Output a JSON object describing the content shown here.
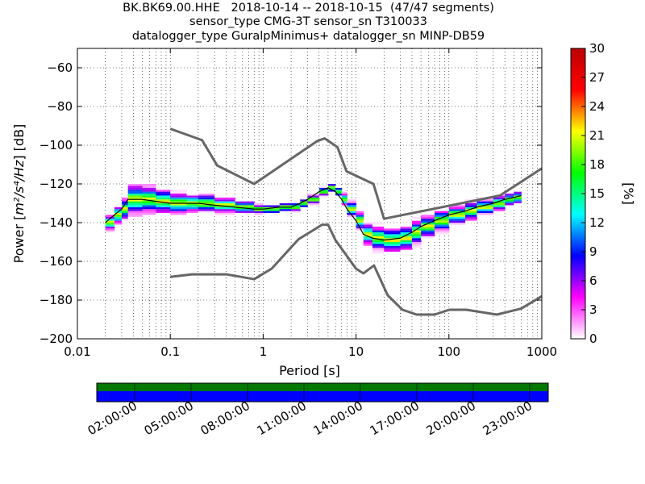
{
  "title_lines": [
    "BK.BK69.00.HHE   2018-10-14 -- 2018-10-15  (47/47 segments)",
    "sensor_type CMG-3T sensor_sn T310033",
    "datalogger_type GuralpMinimus+ datalogger_sn MINP-DB59"
  ],
  "chart_data": {
    "type": "heatmap",
    "xlabel": "Period [s]",
    "ylabel": "Power [m²/s⁴/Hz] [dB]",
    "ylabel_parts": {
      "prefix": "Power [",
      "unit": "m²/s⁴/Hz",
      "suffix": "] [dB]"
    },
    "x_scale": "log",
    "xlim": [
      0.01,
      1000
    ],
    "ylim": [
      -200,
      -50
    ],
    "x_ticks": [
      0.01,
      0.1,
      1,
      10,
      100,
      1000
    ],
    "x_tick_labels": [
      "0.01",
      "0.1",
      "1",
      "10",
      "100",
      "1000"
    ],
    "y_ticks": [
      -60,
      -80,
      -100,
      -120,
      -140,
      -160,
      -180,
      -200
    ],
    "grid": "dotted",
    "colorbar": {
      "label": "[%]",
      "range": [
        0,
        30
      ],
      "ticks": [
        0,
        3,
        6,
        9,
        12,
        15,
        18,
        21,
        24,
        27,
        30
      ],
      "colors": [
        "#ffffff",
        "#ff00ff",
        "#0000ff",
        "#00ffff",
        "#00ff00",
        "#ffff00",
        "#ff0000",
        "#bb0000"
      ]
    },
    "nhnm": {
      "name": "NHNM",
      "color": "#666666",
      "points": [
        [
          0.1,
          -91.5
        ],
        [
          0.22,
          -97.4
        ],
        [
          0.32,
          -110.5
        ],
        [
          0.8,
          -120
        ],
        [
          3.8,
          -97.9
        ],
        [
          4.6,
          -96.5
        ],
        [
          6.3,
          -101
        ],
        [
          7.9,
          -113.5
        ],
        [
          15.4,
          -120
        ],
        [
          20,
          -138
        ],
        [
          354.8,
          -126
        ],
        [
          1000,
          -112
        ]
      ]
    },
    "nlnm": {
      "name": "NLNM",
      "color": "#666666",
      "points": [
        [
          0.1,
          -168
        ],
        [
          0.17,
          -166.7
        ],
        [
          0.4,
          -166.7
        ],
        [
          0.8,
          -169.2
        ],
        [
          1.24,
          -163.7
        ],
        [
          2.4,
          -148.6
        ],
        [
          4.3,
          -141.1
        ],
        [
          5,
          -141.1
        ],
        [
          6,
          -149
        ],
        [
          10,
          -163.8
        ],
        [
          12,
          -166.2
        ],
        [
          15.6,
          -162.1
        ],
        [
          21.9,
          -177.5
        ],
        [
          31.6,
          -185
        ],
        [
          45,
          -187.5
        ],
        [
          70,
          -187.5
        ],
        [
          101,
          -185
        ],
        [
          154,
          -185
        ],
        [
          328,
          -187.5
        ],
        [
          600,
          -184.4
        ],
        [
          1000,
          -178
        ]
      ]
    },
    "psd_bands": {
      "periods": [
        0.02,
        0.025,
        0.03,
        0.035,
        0.05,
        0.07,
        0.1,
        0.15,
        0.2,
        0.3,
        0.5,
        0.8,
        1,
        1.5,
        2,
        2.5,
        3,
        4,
        5,
        6,
        7,
        8,
        10,
        12,
        15,
        20,
        30,
        40,
        50,
        70,
        100,
        150,
        200,
        300,
        400,
        500,
        600
      ],
      "center_db": [
        -140,
        -136,
        -133,
        -128,
        -128,
        -129,
        -130,
        -130,
        -130,
        -131,
        -132,
        -133,
        -133,
        -132,
        -132,
        -130,
        -128,
        -124,
        -122,
        -124,
        -128,
        -133,
        -139,
        -146,
        -148,
        -149,
        -148,
        -145,
        -142,
        -139,
        -136,
        -134,
        -132,
        -130,
        -128,
        -127,
        -126
      ],
      "half_width_db": [
        5,
        6,
        7,
        10,
        9,
        8,
        7,
        6,
        6,
        5,
        4,
        3,
        3,
        3,
        3,
        3,
        3,
        3,
        3,
        3,
        4,
        5,
        6,
        7,
        8,
        8,
        8,
        8,
        7,
        7,
        6,
        6,
        5,
        5,
        4,
        4,
        4
      ]
    }
  },
  "time_bar": {
    "top_color": "#007700",
    "bottom_color": "#0000ff",
    "labels": [
      "02:00:00",
      "05:00:00",
      "08:00:00",
      "11:00:00",
      "14:00:00",
      "17:00:00",
      "20:00:00",
      "23:00:00"
    ]
  }
}
